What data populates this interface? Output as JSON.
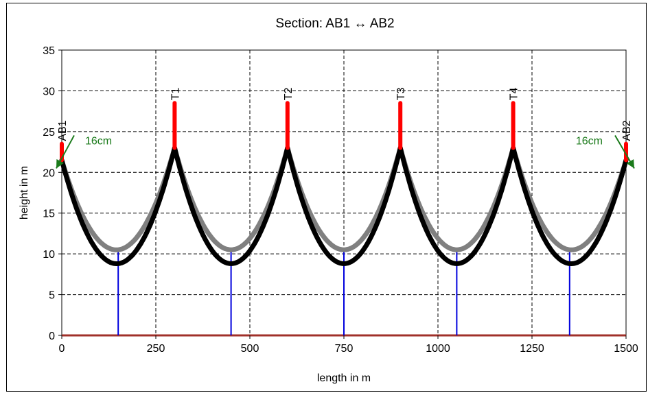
{
  "chart_data": {
    "type": "line",
    "title": "Section: AB1 ↔ AB2",
    "xlabel": "length in m",
    "ylabel": "height in m",
    "xlim": [
      0,
      1500
    ],
    "ylim": [
      0,
      35
    ],
    "xticks": [
      0,
      250,
      500,
      750,
      1000,
      1250,
      1500
    ],
    "yticks": [
      0,
      5,
      10,
      15,
      20,
      25,
      30,
      35
    ],
    "grid": true,
    "supports": [
      {
        "label": "AB1",
        "x": 0,
        "base": 21.5,
        "top": 23.5
      },
      {
        "label": "T1",
        "x": 300,
        "base": 23,
        "top": 28.5
      },
      {
        "label": "T2",
        "x": 600,
        "base": 23,
        "top": 28.5
      },
      {
        "label": "T3",
        "x": 900,
        "base": 23,
        "top": 28.5
      },
      {
        "label": "T4",
        "x": 1200,
        "base": 23,
        "top": 28.5
      },
      {
        "label": "AB2",
        "x": 1500,
        "base": 21.5,
        "top": 23.5
      }
    ],
    "series": [
      {
        "values": [
          {
            "x0": 0,
            "y0": 21.5,
            "x1": 300,
            "y1": 23,
            "sag": 10.5
          },
          {
            "x0": 300,
            "y0": 23,
            "x1": 600,
            "y1": 23,
            "sag": 10.5
          },
          {
            "x0": 600,
            "y0": 23,
            "x1": 900,
            "y1": 23,
            "sag": 10.5
          },
          {
            "x0": 900,
            "y0": 23,
            "x1": 1200,
            "y1": 23,
            "sag": 10.5
          },
          {
            "x0": 1200,
            "y0": 23,
            "x1": 1500,
            "y1": 21.5,
            "sag": 10.5
          }
        ]
      },
      {
        "values": [
          {
            "x0": 0,
            "y0": 21.5,
            "x1": 300,
            "y1": 23,
            "sag": 8.8
          },
          {
            "x0": 300,
            "y0": 23,
            "x1": 600,
            "y1": 23,
            "sag": 8.8
          },
          {
            "x0": 600,
            "y0": 23,
            "x1": 900,
            "y1": 23,
            "sag": 8.8
          },
          {
            "x0": 900,
            "y0": 23,
            "x1": 1200,
            "y1": 23,
            "sag": 8.8
          },
          {
            "x0": 1200,
            "y0": 23,
            "x1": 1500,
            "y1": 21.5,
            "sag": 8.8
          }
        ]
      }
    ],
    "clearance_lines": [
      {
        "x": 150,
        "y_from": 0,
        "y_to": 10.5
      },
      {
        "x": 450,
        "y_from": 0,
        "y_to": 10.5
      },
      {
        "x": 750,
        "y_from": 0,
        "y_to": 10.5
      },
      {
        "x": 1050,
        "y_from": 0,
        "y_to": 10.5
      },
      {
        "x": 1350,
        "y_from": 0,
        "y_to": 10.5
      }
    ],
    "ground": {
      "y": 0
    },
    "annotations": [
      {
        "text": "16cm",
        "x": 0,
        "y": 21.5,
        "side": "left"
      },
      {
        "text": "16cm",
        "x": 1500,
        "y": 21.5,
        "side": "right"
      }
    ],
    "colors": {
      "cable_hot": "#808080",
      "cable_cold": "#000000",
      "tower": "#ff0000",
      "clearance": "#0000dd",
      "ground": "#a0302a",
      "annotation": "#1a7a1a",
      "grid": "#000000"
    }
  }
}
